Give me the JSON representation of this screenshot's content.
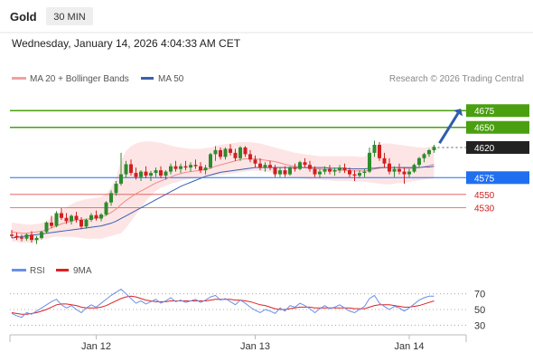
{
  "header": {
    "instrument": "Gold",
    "timeframe": "30 MIN",
    "timestamp": "Wednesday, January 14, 2026 4:04:33 AM CET"
  },
  "legend": {
    "bb_label": "MA 20 + Bollinger Bands",
    "ma50_label": "MA 50",
    "source": "Research © 2026 Trading Central",
    "rsi_label": "RSI",
    "ma9_label": "9MA"
  },
  "colors": {
    "up": "#2e8b2e",
    "down": "#d22020",
    "bands": "#fde2e2",
    "ma20": "#f08a8a",
    "ma50": "#3b5fb0",
    "resistance": "#4aa010",
    "pivot": "#222222",
    "support_blue": "#1f6ff0",
    "support_red": "#e05050",
    "rsi": "#6a8fe8",
    "rsi_ma": "#e02020",
    "arrow": "#2f5da8"
  },
  "chart_data": [
    {
      "type": "candlestick",
      "title": "Gold",
      "timeframe": "30 MIN",
      "x_ticks": [
        "Jan 12",
        "Jan 13",
        "Jan 14"
      ],
      "ylim": [
        4462,
        4705
      ],
      "levels": [
        {
          "label": "4675",
          "value": 4675,
          "style": "resistance"
        },
        {
          "label": "4650",
          "value": 4650,
          "style": "resistance"
        },
        {
          "label": "4620",
          "value": 4620,
          "style": "pivot"
        },
        {
          "label": "4575",
          "value": 4575,
          "style": "support_blue"
        },
        {
          "label": "4550",
          "value": 4550,
          "style": "support_red"
        },
        {
          "label": "4530",
          "value": 4530,
          "style": "support_red"
        }
      ],
      "forecast_target": 4675,
      "candles": [
        [
          4490,
          4497,
          4485,
          4488
        ],
        [
          4488,
          4493,
          4482,
          4486
        ],
        [
          4486,
          4490,
          4480,
          4484
        ],
        [
          4484,
          4492,
          4481,
          4490
        ],
        [
          4490,
          4495,
          4478,
          4482
        ],
        [
          4482,
          4488,
          4476,
          4485
        ],
        [
          4485,
          4496,
          4483,
          4494
        ],
        [
          4494,
          4510,
          4492,
          4508
        ],
        [
          4508,
          4518,
          4500,
          4503
        ],
        [
          4503,
          4525,
          4501,
          4522
        ],
        [
          4522,
          4530,
          4512,
          4515
        ],
        [
          4515,
          4522,
          4506,
          4510
        ],
        [
          4510,
          4520,
          4505,
          4518
        ],
        [
          4518,
          4524,
          4508,
          4512
        ],
        [
          4512,
          4516,
          4498,
          4502
        ],
        [
          4502,
          4514,
          4499,
          4512
        ],
        [
          4512,
          4522,
          4509,
          4519
        ],
        [
          4519,
          4526,
          4511,
          4514
        ],
        [
          4514,
          4522,
          4510,
          4520
        ],
        [
          4520,
          4540,
          4518,
          4538
        ],
        [
          4538,
          4556,
          4533,
          4552
        ],
        [
          4552,
          4570,
          4548,
          4566
        ],
        [
          4566,
          4612,
          4563,
          4580
        ],
        [
          4580,
          4600,
          4575,
          4595
        ],
        [
          4595,
          4602,
          4578,
          4582
        ],
        [
          4582,
          4590,
          4572,
          4576
        ],
        [
          4576,
          4586,
          4570,
          4584
        ],
        [
          4584,
          4592,
          4574,
          4578
        ],
        [
          4578,
          4585,
          4570,
          4582
        ],
        [
          4582,
          4590,
          4576,
          4586
        ],
        [
          4586,
          4592,
          4574,
          4578
        ],
        [
          4578,
          4586,
          4572,
          4584
        ],
        [
          4584,
          4596,
          4580,
          4592
        ],
        [
          4592,
          4600,
          4584,
          4588
        ],
        [
          4588,
          4596,
          4582,
          4592
        ],
        [
          4592,
          4600,
          4586,
          4590
        ],
        [
          4590,
          4598,
          4584,
          4594
        ],
        [
          4594,
          4602,
          4588,
          4592
        ],
        [
          4592,
          4598,
          4582,
          4586
        ],
        [
          4586,
          4594,
          4580,
          4590
        ],
        [
          4590,
          4612,
          4588,
          4610
        ],
        [
          4610,
          4622,
          4600,
          4616
        ],
        [
          4616,
          4620,
          4602,
          4606
        ],
        [
          4606,
          4620,
          4602,
          4618
        ],
        [
          4618,
          4625,
          4608,
          4612
        ],
        [
          4612,
          4618,
          4600,
          4604
        ],
        [
          4604,
          4622,
          4600,
          4620
        ],
        [
          4620,
          4622,
          4606,
          4610
        ],
        [
          4610,
          4616,
          4598,
          4602
        ],
        [
          4602,
          4608,
          4590,
          4596
        ],
        [
          4596,
          4604,
          4586,
          4590
        ],
        [
          4590,
          4598,
          4584,
          4594
        ],
        [
          4594,
          4600,
          4586,
          4590
        ],
        [
          4590,
          4594,
          4576,
          4580
        ],
        [
          4580,
          4590,
          4576,
          4586
        ],
        [
          4586,
          4592,
          4576,
          4580
        ],
        [
          4580,
          4592,
          4578,
          4590
        ],
        [
          4590,
          4596,
          4584,
          4588
        ],
        [
          4588,
          4600,
          4586,
          4598
        ],
        [
          4598,
          4604,
          4590,
          4594
        ],
        [
          4594,
          4600,
          4584,
          4588
        ],
        [
          4588,
          4592,
          4576,
          4580
        ],
        [
          4580,
          4588,
          4574,
          4584
        ],
        [
          4584,
          4592,
          4580,
          4588
        ],
        [
          4588,
          4594,
          4580,
          4584
        ],
        [
          4584,
          4590,
          4578,
          4586
        ],
        [
          4586,
          4594,
          4582,
          4590
        ],
        [
          4590,
          4596,
          4582,
          4586
        ],
        [
          4586,
          4590,
          4576,
          4580
        ],
        [
          4580,
          4586,
          4570,
          4578
        ],
        [
          4578,
          4586,
          4574,
          4582
        ],
        [
          4582,
          4588,
          4576,
          4584
        ],
        [
          4584,
          4620,
          4582,
          4612
        ],
        [
          4612,
          4630,
          4606,
          4624
        ],
        [
          4624,
          4628,
          4600,
          4604
        ],
        [
          4604,
          4612,
          4590,
          4596
        ],
        [
          4596,
          4604,
          4580,
          4584
        ],
        [
          4584,
          4592,
          4576,
          4588
        ],
        [
          4588,
          4596,
          4580,
          4584
        ],
        [
          4584,
          4590,
          4566,
          4580
        ],
        [
          4580,
          4588,
          4576,
          4584
        ],
        [
          4584,
          4596,
          4582,
          4594
        ],
        [
          4594,
          4606,
          4590,
          4604
        ],
        [
          4604,
          4612,
          4598,
          4610
        ],
        [
          4610,
          4618,
          4606,
          4616
        ],
        [
          4616,
          4624,
          4612,
          4621
        ]
      ],
      "ma20": [
        4494,
        4493,
        4492,
        4492,
        4493,
        4494,
        4495,
        4497,
        4500,
        4503,
        4506,
        4508,
        4510,
        4512,
        4512,
        4513,
        4514,
        4515,
        4516,
        4519,
        4523,
        4528,
        4535,
        4541,
        4546,
        4551,
        4555,
        4559,
        4563,
        4567,
        4570,
        4573,
        4576,
        4579,
        4581,
        4583,
        4584,
        4585,
        4586,
        4587,
        4589,
        4592,
        4594,
        4596,
        4598,
        4600,
        4602,
        4603,
        4603,
        4603,
        4602,
        4601,
        4600,
        4599,
        4597,
        4595,
        4593,
        4592,
        4591,
        4590,
        4589,
        4588,
        4588,
        4587,
        4587,
        4586,
        4586,
        4586,
        4585,
        4585,
        4585,
        4585,
        4586,
        4588,
        4589,
        4590,
        4590,
        4590,
        4590,
        4589,
        4589,
        4589,
        4590,
        4591,
        4593,
        4595
      ],
      "ma50": [
        4485,
        4486,
        4487,
        4488,
        4489,
        4490,
        4491,
        4492,
        4493,
        4494,
        4495,
        4496,
        4497,
        4498,
        4499,
        4500,
        4501,
        4502,
        4503,
        4505,
        4507,
        4510,
        4514,
        4518,
        4522,
        4526,
        4530,
        4534,
        4538,
        4542,
        4546,
        4550,
        4554,
        4558,
        4562,
        4565,
        4568,
        4571,
        4574,
        4577,
        4579,
        4581,
        4583,
        4584,
        4585,
        4586,
        4587,
        4588,
        4589,
        4590,
        4590,
        4590,
        4590,
        4590,
        4590,
        4590,
        4590,
        4590,
        4590,
        4590,
        4590,
        4590,
        4590,
        4590,
        4589,
        4589,
        4589,
        4589,
        4588,
        4588,
        4588,
        4588,
        4589,
        4589,
        4590,
        4590,
        4590,
        4590,
        4590,
        4590,
        4590,
        4590,
        4590,
        4591,
        4591,
        4592
      ],
      "bb_upper": [
        4508,
        4507,
        4506,
        4505,
        4505,
        4506,
        4507,
        4510,
        4515,
        4520,
        4526,
        4531,
        4535,
        4539,
        4541,
        4543,
        4544,
        4545,
        4546,
        4551,
        4560,
        4575,
        4600,
        4615,
        4622,
        4626,
        4628,
        4629,
        4629,
        4628,
        4627,
        4625,
        4623,
        4621,
        4620,
        4619,
        4618,
        4618,
        4618,
        4619,
        4620,
        4622,
        4624,
        4625,
        4626,
        4627,
        4628,
        4628,
        4628,
        4627,
        4626,
        4624,
        4622,
        4620,
        4618,
        4616,
        4614,
        4612,
        4611,
        4610,
        4609,
        4608,
        4607,
        4607,
        4607,
        4607,
        4607,
        4607,
        4607,
        4607,
        4606,
        4606,
        4612,
        4620,
        4624,
        4626,
        4626,
        4625,
        4624,
        4623,
        4622,
        4621,
        4620,
        4620,
        4621,
        4622
      ],
      "bb_lower": [
        4480,
        4479,
        4478,
        4478,
        4478,
        4480,
        4482,
        4484,
        4486,
        4487,
        4487,
        4487,
        4487,
        4486,
        4485,
        4484,
        4484,
        4484,
        4484,
        4486,
        4488,
        4490,
        4492,
        4500,
        4510,
        4520,
        4530,
        4540,
        4548,
        4555,
        4560,
        4563,
        4566,
        4568,
        4570,
        4572,
        4573,
        4574,
        4575,
        4576,
        4577,
        4578,
        4579,
        4580,
        4581,
        4582,
        4583,
        4584,
        4585,
        4585,
        4585,
        4584,
        4583,
        4582,
        4580,
        4578,
        4576,
        4575,
        4574,
        4573,
        4572,
        4572,
        4572,
        4571,
        4571,
        4570,
        4570,
        4570,
        4570,
        4569,
        4569,
        4569,
        4568,
        4567,
        4566,
        4565,
        4565,
        4566,
        4567,
        4568,
        4569,
        4570,
        4571,
        4572,
        4573,
        4574
      ],
      "rsi": {
        "ylim": [
          20,
          80
        ],
        "ticks": [
          70,
          50,
          30
        ],
        "rsi": [
          45,
          42,
          40,
          46,
          44,
          48,
          52,
          56,
          60,
          63,
          56,
          52,
          55,
          50,
          46,
          52,
          56,
          53,
          58,
          63,
          68,
          72,
          76,
          70,
          64,
          58,
          61,
          57,
          60,
          63,
          58,
          61,
          65,
          60,
          62,
          59,
          61,
          63,
          59,
          62,
          66,
          68,
          62,
          64,
          60,
          56,
          62,
          58,
          53,
          49,
          46,
          50,
          48,
          45,
          52,
          48,
          55,
          53,
          58,
          55,
          51,
          46,
          51,
          55,
          51,
          53,
          56,
          52,
          48,
          46,
          50,
          54,
          64,
          68,
          58,
          54,
          50,
          54,
          52,
          48,
          52,
          57,
          62,
          65,
          67,
          67
        ],
        "ma": [
          46,
          45,
          44,
          44,
          45,
          46,
          48,
          50,
          53,
          56,
          57,
          57,
          56,
          55,
          53,
          52,
          52,
          52,
          53,
          55,
          58,
          61,
          64,
          66,
          67,
          66,
          64,
          62,
          61,
          60,
          60,
          60,
          61,
          61,
          61,
          61,
          61,
          61,
          61,
          61,
          62,
          63,
          63,
          63,
          63,
          62,
          62,
          61,
          60,
          58,
          56,
          55,
          53,
          51,
          50,
          50,
          51,
          52,
          53,
          53,
          53,
          52,
          52,
          52,
          52,
          52,
          52,
          52,
          52,
          51,
          51,
          51,
          53,
          55,
          56,
          56,
          56,
          55,
          54,
          53,
          53,
          54,
          55,
          57,
          59,
          61
        ]
      }
    }
  ]
}
